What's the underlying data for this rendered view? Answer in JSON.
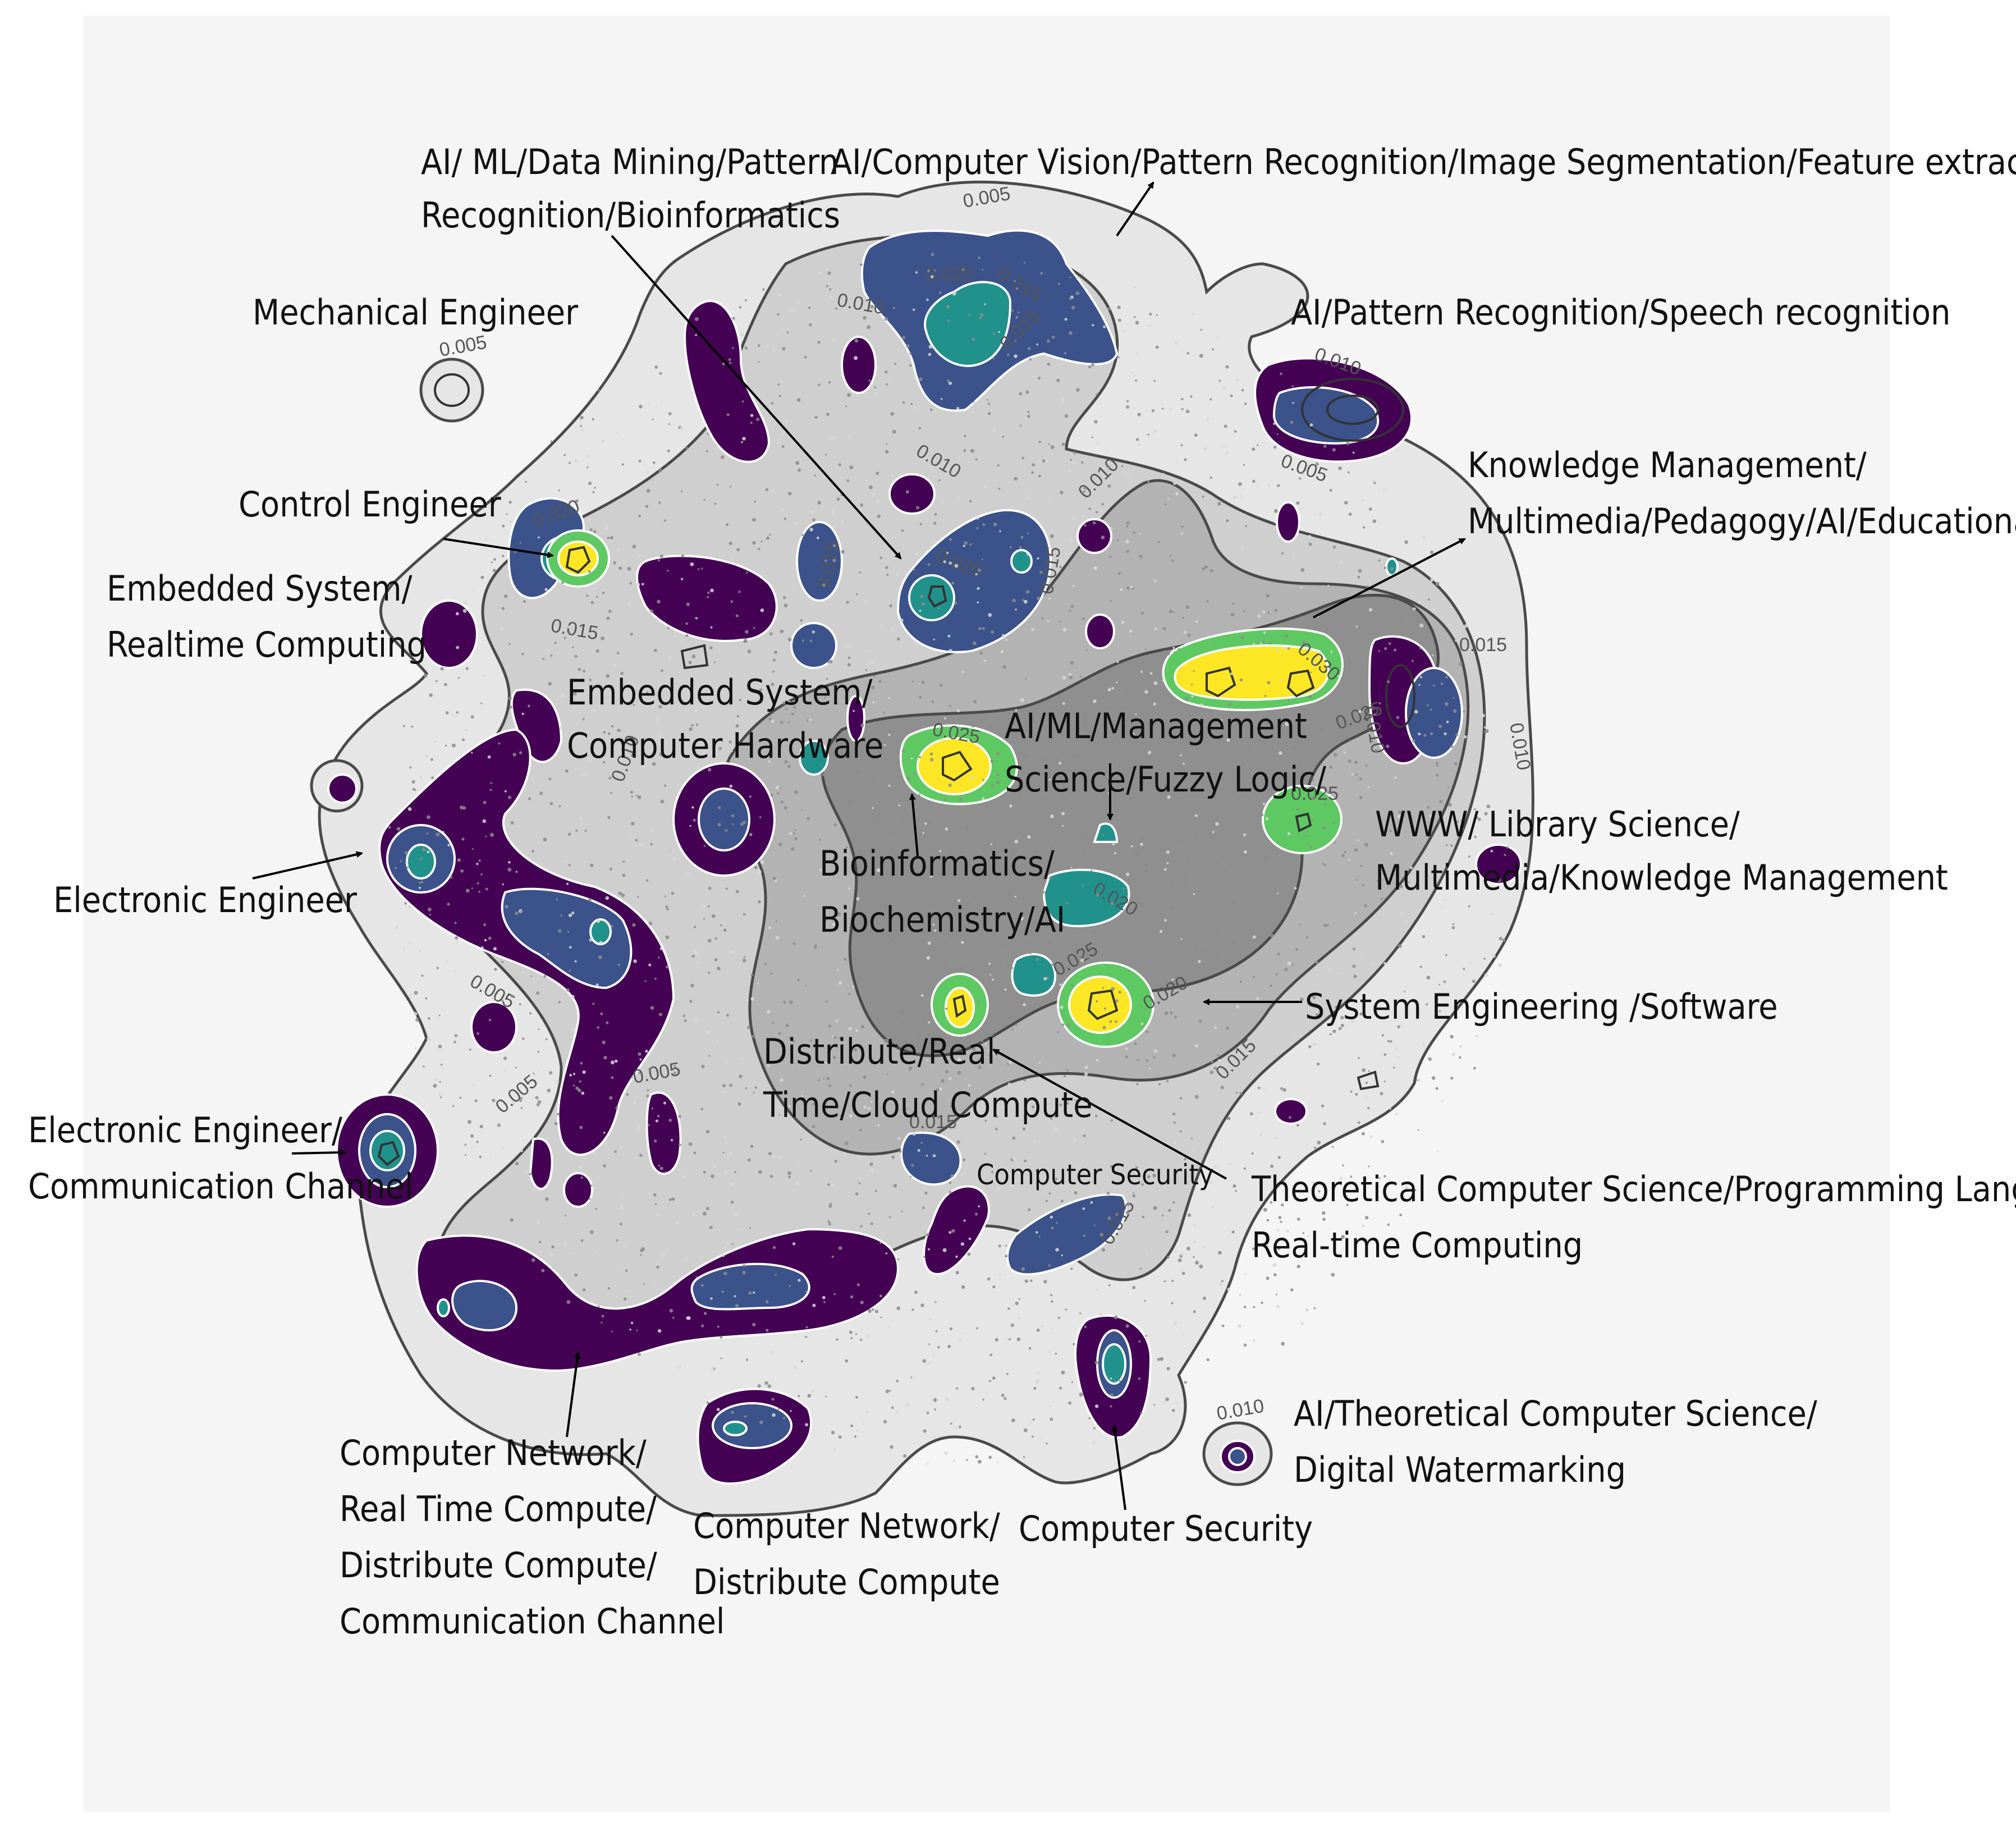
{
  "colors": {
    "panel_background": "#f5f5f5",
    "band_0": "#e6e6e6",
    "band_1": "#cfcfcf",
    "band_2": "#b3b3b3",
    "band_3": "#8f8f8f",
    "dark_purple": "#440154",
    "blue": "#3b528b",
    "teal": "#21918c",
    "green": "#5ec962",
    "yellow": "#fde725",
    "point_color": "#8c8c8c"
  },
  "contour_levels": [
    "0.005",
    "0.010",
    "0.015",
    "0.020",
    "0.025",
    "0.030"
  ],
  "topic_labels": [
    {
      "id": "ai-ml-datamining",
      "lines": [
        "AI/ ML/Data Mining/Pattern",
        "Recognition/Bioinformatics"
      ]
    },
    {
      "id": "ai-computer-vision",
      "lines": [
        "AI/Computer Vision/Pattern Recognition/Image Segmentation/Feature extraction"
      ]
    },
    {
      "id": "mechanical-engineer",
      "lines": [
        "Mechanical Engineer"
      ]
    },
    {
      "id": "ai-speech",
      "lines": [
        "AI/Pattern Recognition/Speech recognition"
      ]
    },
    {
      "id": "knowledge-management",
      "lines": [
        "Knowledge Management/",
        "Multimedia/Pedagogy/AI/Educational"
      ]
    },
    {
      "id": "control-engineer",
      "lines": [
        "Control Engineer"
      ]
    },
    {
      "id": "embedded-realtime",
      "lines": [
        "Embedded System/",
        "Realtime Computing"
      ]
    },
    {
      "id": "embedded-hardware",
      "lines": [
        "Embedded System/",
        "Computer Hardware"
      ]
    },
    {
      "id": "ai-ml-management",
      "lines": [
        "AI/ML/Management",
        "Science/Fuzzy Logic/"
      ]
    },
    {
      "id": "www-library",
      "lines": [
        "WWW/ Library Science/",
        "Multimedia/Knowledge Management"
      ]
    },
    {
      "id": "electronic-engineer",
      "lines": [
        "Electronic Engineer"
      ]
    },
    {
      "id": "bioinformatics",
      "lines": [
        "Bioinformatics/",
        "Biochemistry/AI"
      ]
    },
    {
      "id": "system-engineering",
      "lines": [
        "System Engineering /Software"
      ]
    },
    {
      "id": "distribute-cloud",
      "lines": [
        "Distribute/Real",
        "Time/Cloud Compute"
      ]
    },
    {
      "id": "electronic-communication",
      "lines": [
        "Electronic Engineer/",
        "Communication Channel"
      ]
    },
    {
      "id": "computer-security-small",
      "lines": [
        "Computer Security"
      ]
    },
    {
      "id": "theoretical-cs",
      "lines": [
        "Theoretical Computer Science/Programming Language/",
        "Real-time Computing"
      ]
    },
    {
      "id": "network-realtime",
      "lines": [
        "Computer Network/",
        "Real Time Compute/",
        "Distribute Compute/",
        "Communication Channel"
      ]
    },
    {
      "id": "network-distribute",
      "lines": [
        "Computer Network/",
        "Distribute Compute"
      ]
    },
    {
      "id": "computer-security",
      "lines": [
        "Computer Security"
      ]
    },
    {
      "id": "ai-watermarking",
      "lines": [
        "AI/Theoretical Computer Science/",
        "Digital Watermarking"
      ]
    }
  ]
}
